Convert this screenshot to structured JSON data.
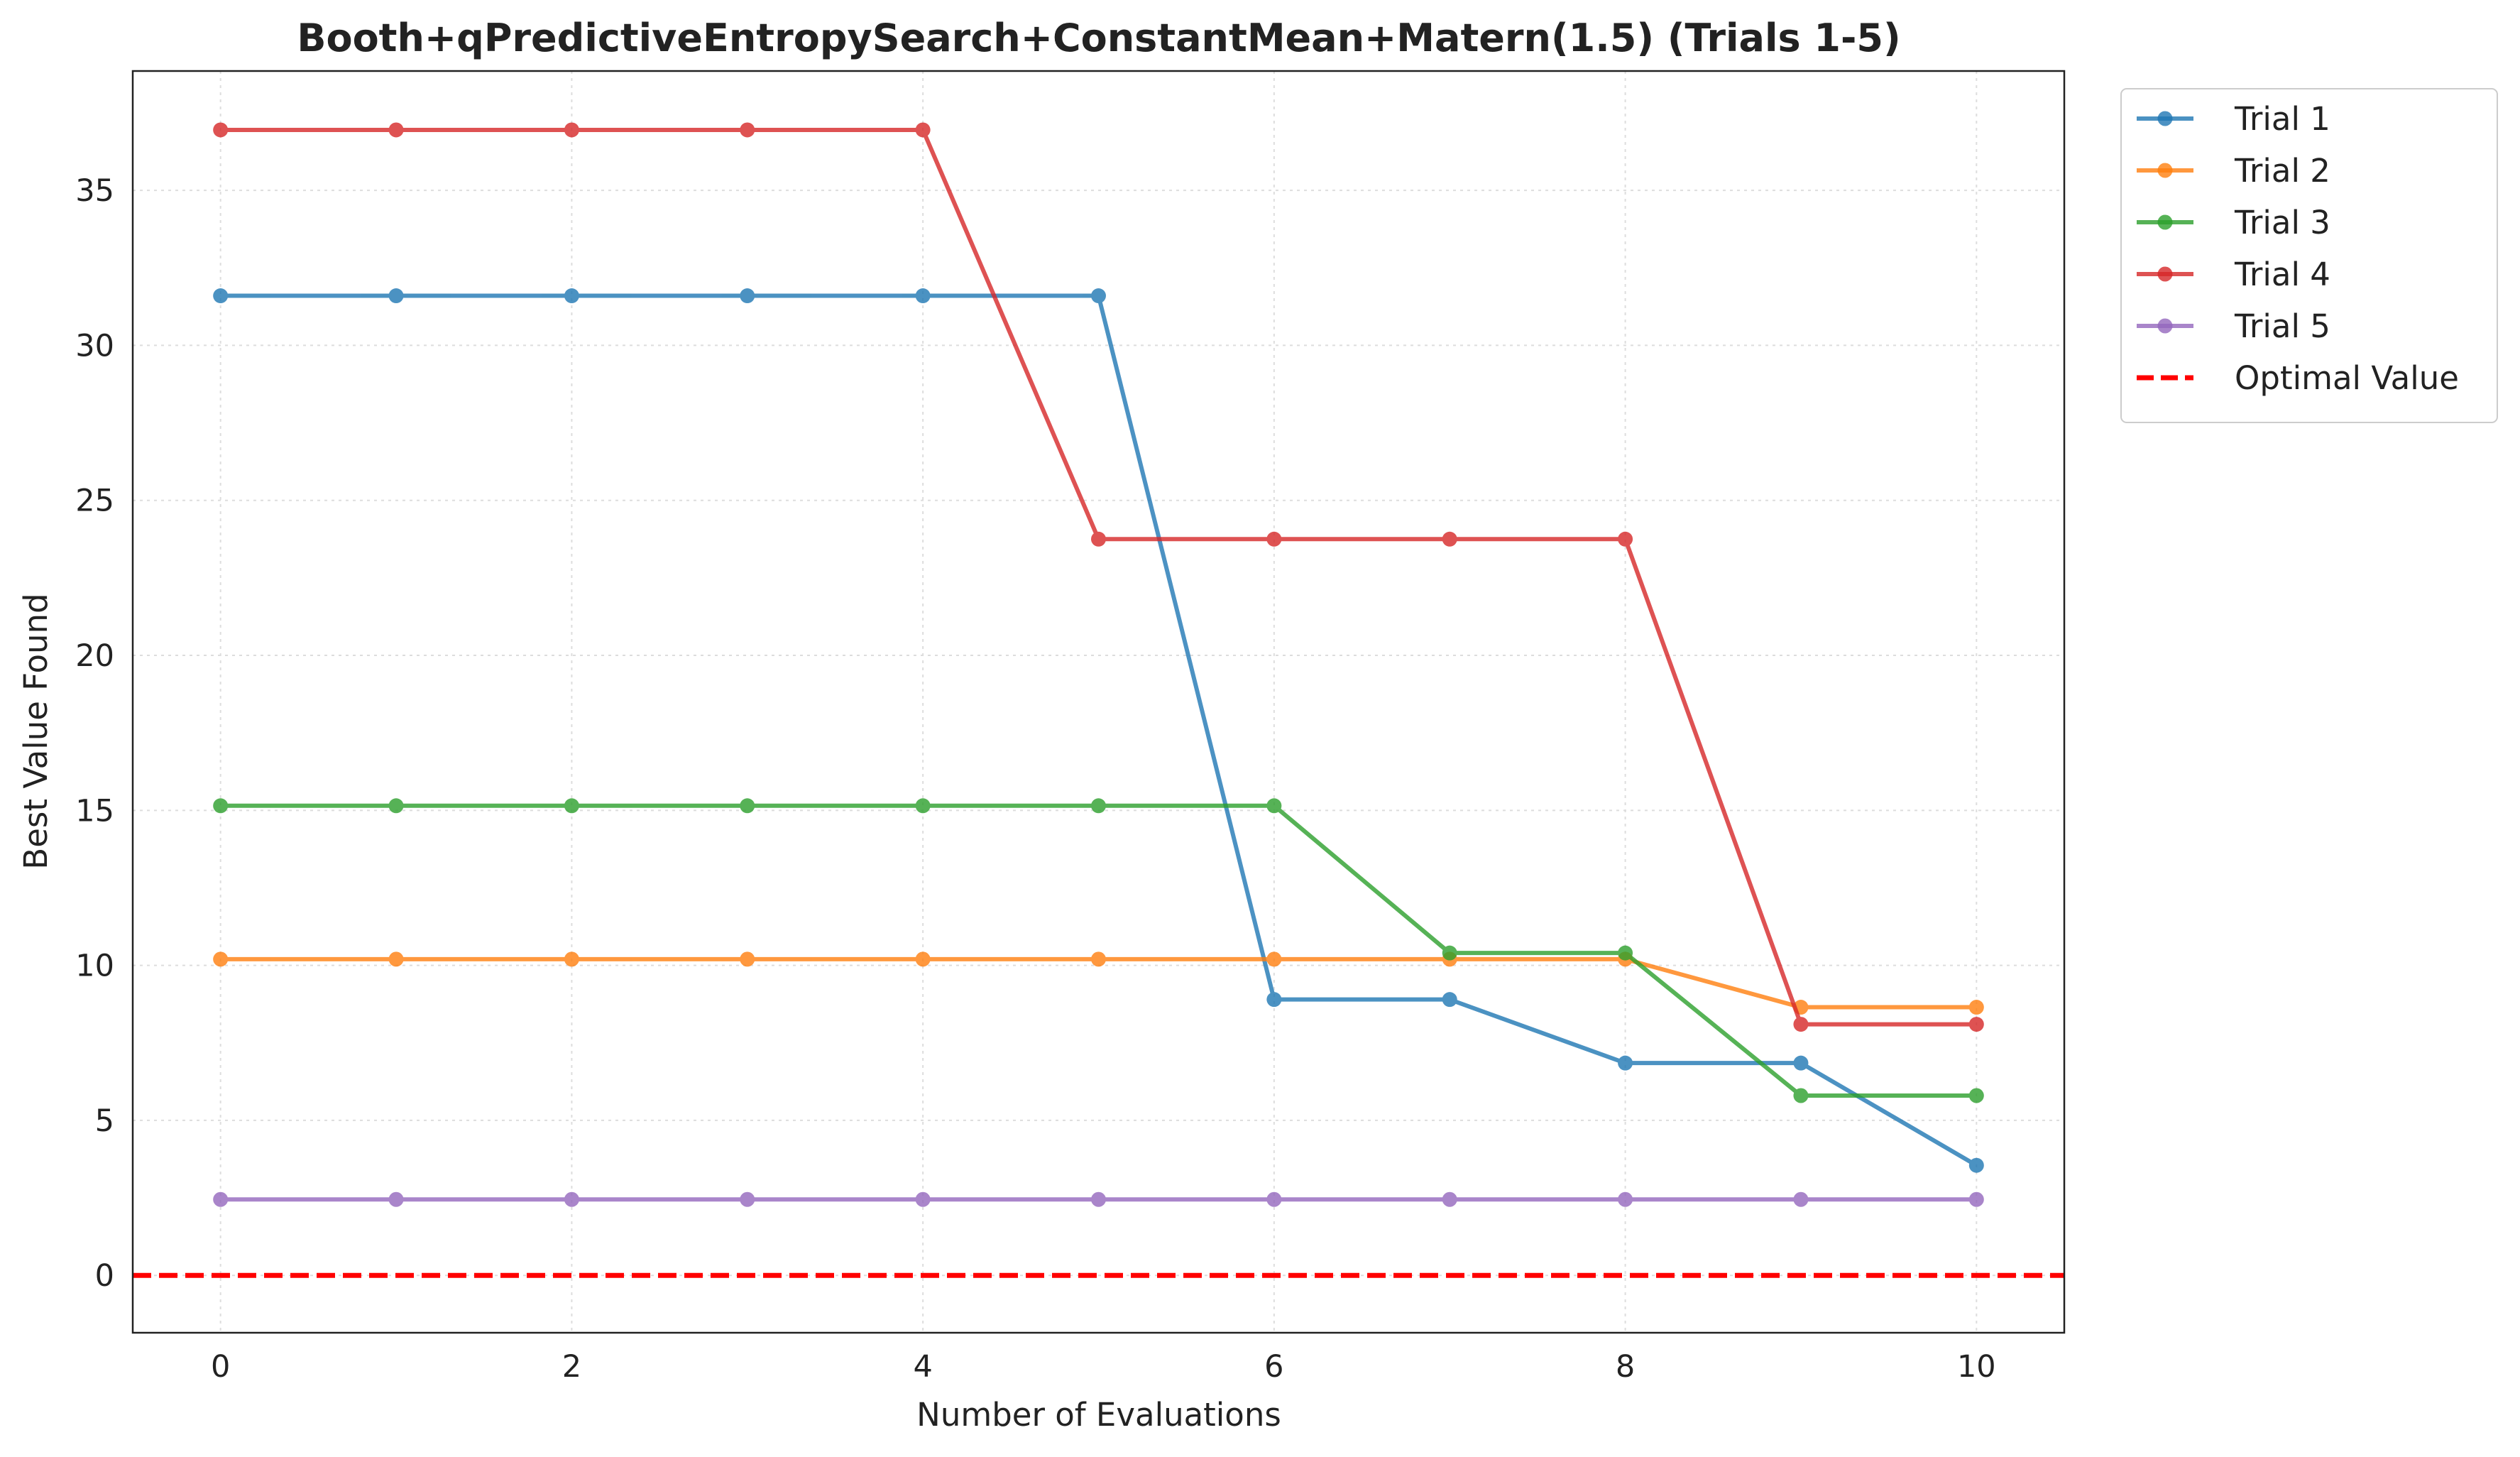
{
  "chart_data": {
    "type": "line",
    "title": "Booth+qPredictiveEntropySearch+ConstantMean+Matern(1.5) (Trials 1-5)",
    "xlabel": "Number of Evaluations",
    "ylabel": "Best Value Found",
    "xlim": [
      -0.5,
      10.5
    ],
    "ylim": [
      -1.85,
      38.85
    ],
    "xticks": [
      0,
      2,
      4,
      6,
      8,
      10
    ],
    "yticks": [
      0,
      5,
      10,
      15,
      20,
      25,
      30,
      35
    ],
    "grid": true,
    "legend_position": "outside-top-right",
    "x": [
      0,
      1,
      2,
      3,
      4,
      5,
      6,
      7,
      8,
      9,
      10
    ],
    "series": [
      {
        "name": "Trial 1",
        "color": "#1f77b4",
        "values": [
          31.6,
          31.6,
          31.6,
          31.6,
          31.6,
          31.6,
          8.9,
          8.9,
          6.85,
          6.85,
          3.55
        ]
      },
      {
        "name": "Trial 2",
        "color": "#ff7f0e",
        "values": [
          10.2,
          10.2,
          10.2,
          10.2,
          10.2,
          10.2,
          10.2,
          10.2,
          10.2,
          8.65,
          8.65
        ]
      },
      {
        "name": "Trial 3",
        "color": "#2ca02c",
        "values": [
          15.15,
          15.15,
          15.15,
          15.15,
          15.15,
          15.15,
          15.15,
          10.4,
          10.4,
          5.8,
          5.8
        ]
      },
      {
        "name": "Trial 4",
        "color": "#d62728",
        "values": [
          36.95,
          36.95,
          36.95,
          36.95,
          36.95,
          23.75,
          23.75,
          23.75,
          23.75,
          8.1,
          8.1
        ]
      },
      {
        "name": "Trial 5",
        "color": "#9467bd",
        "values": [
          2.45,
          2.45,
          2.45,
          2.45,
          2.45,
          2.45,
          2.45,
          2.45,
          2.45,
          2.45,
          2.45
        ]
      }
    ],
    "reference_line": {
      "name": "Optimal Value",
      "value": 0,
      "color": "#ff0000",
      "style": "dashed"
    }
  }
}
